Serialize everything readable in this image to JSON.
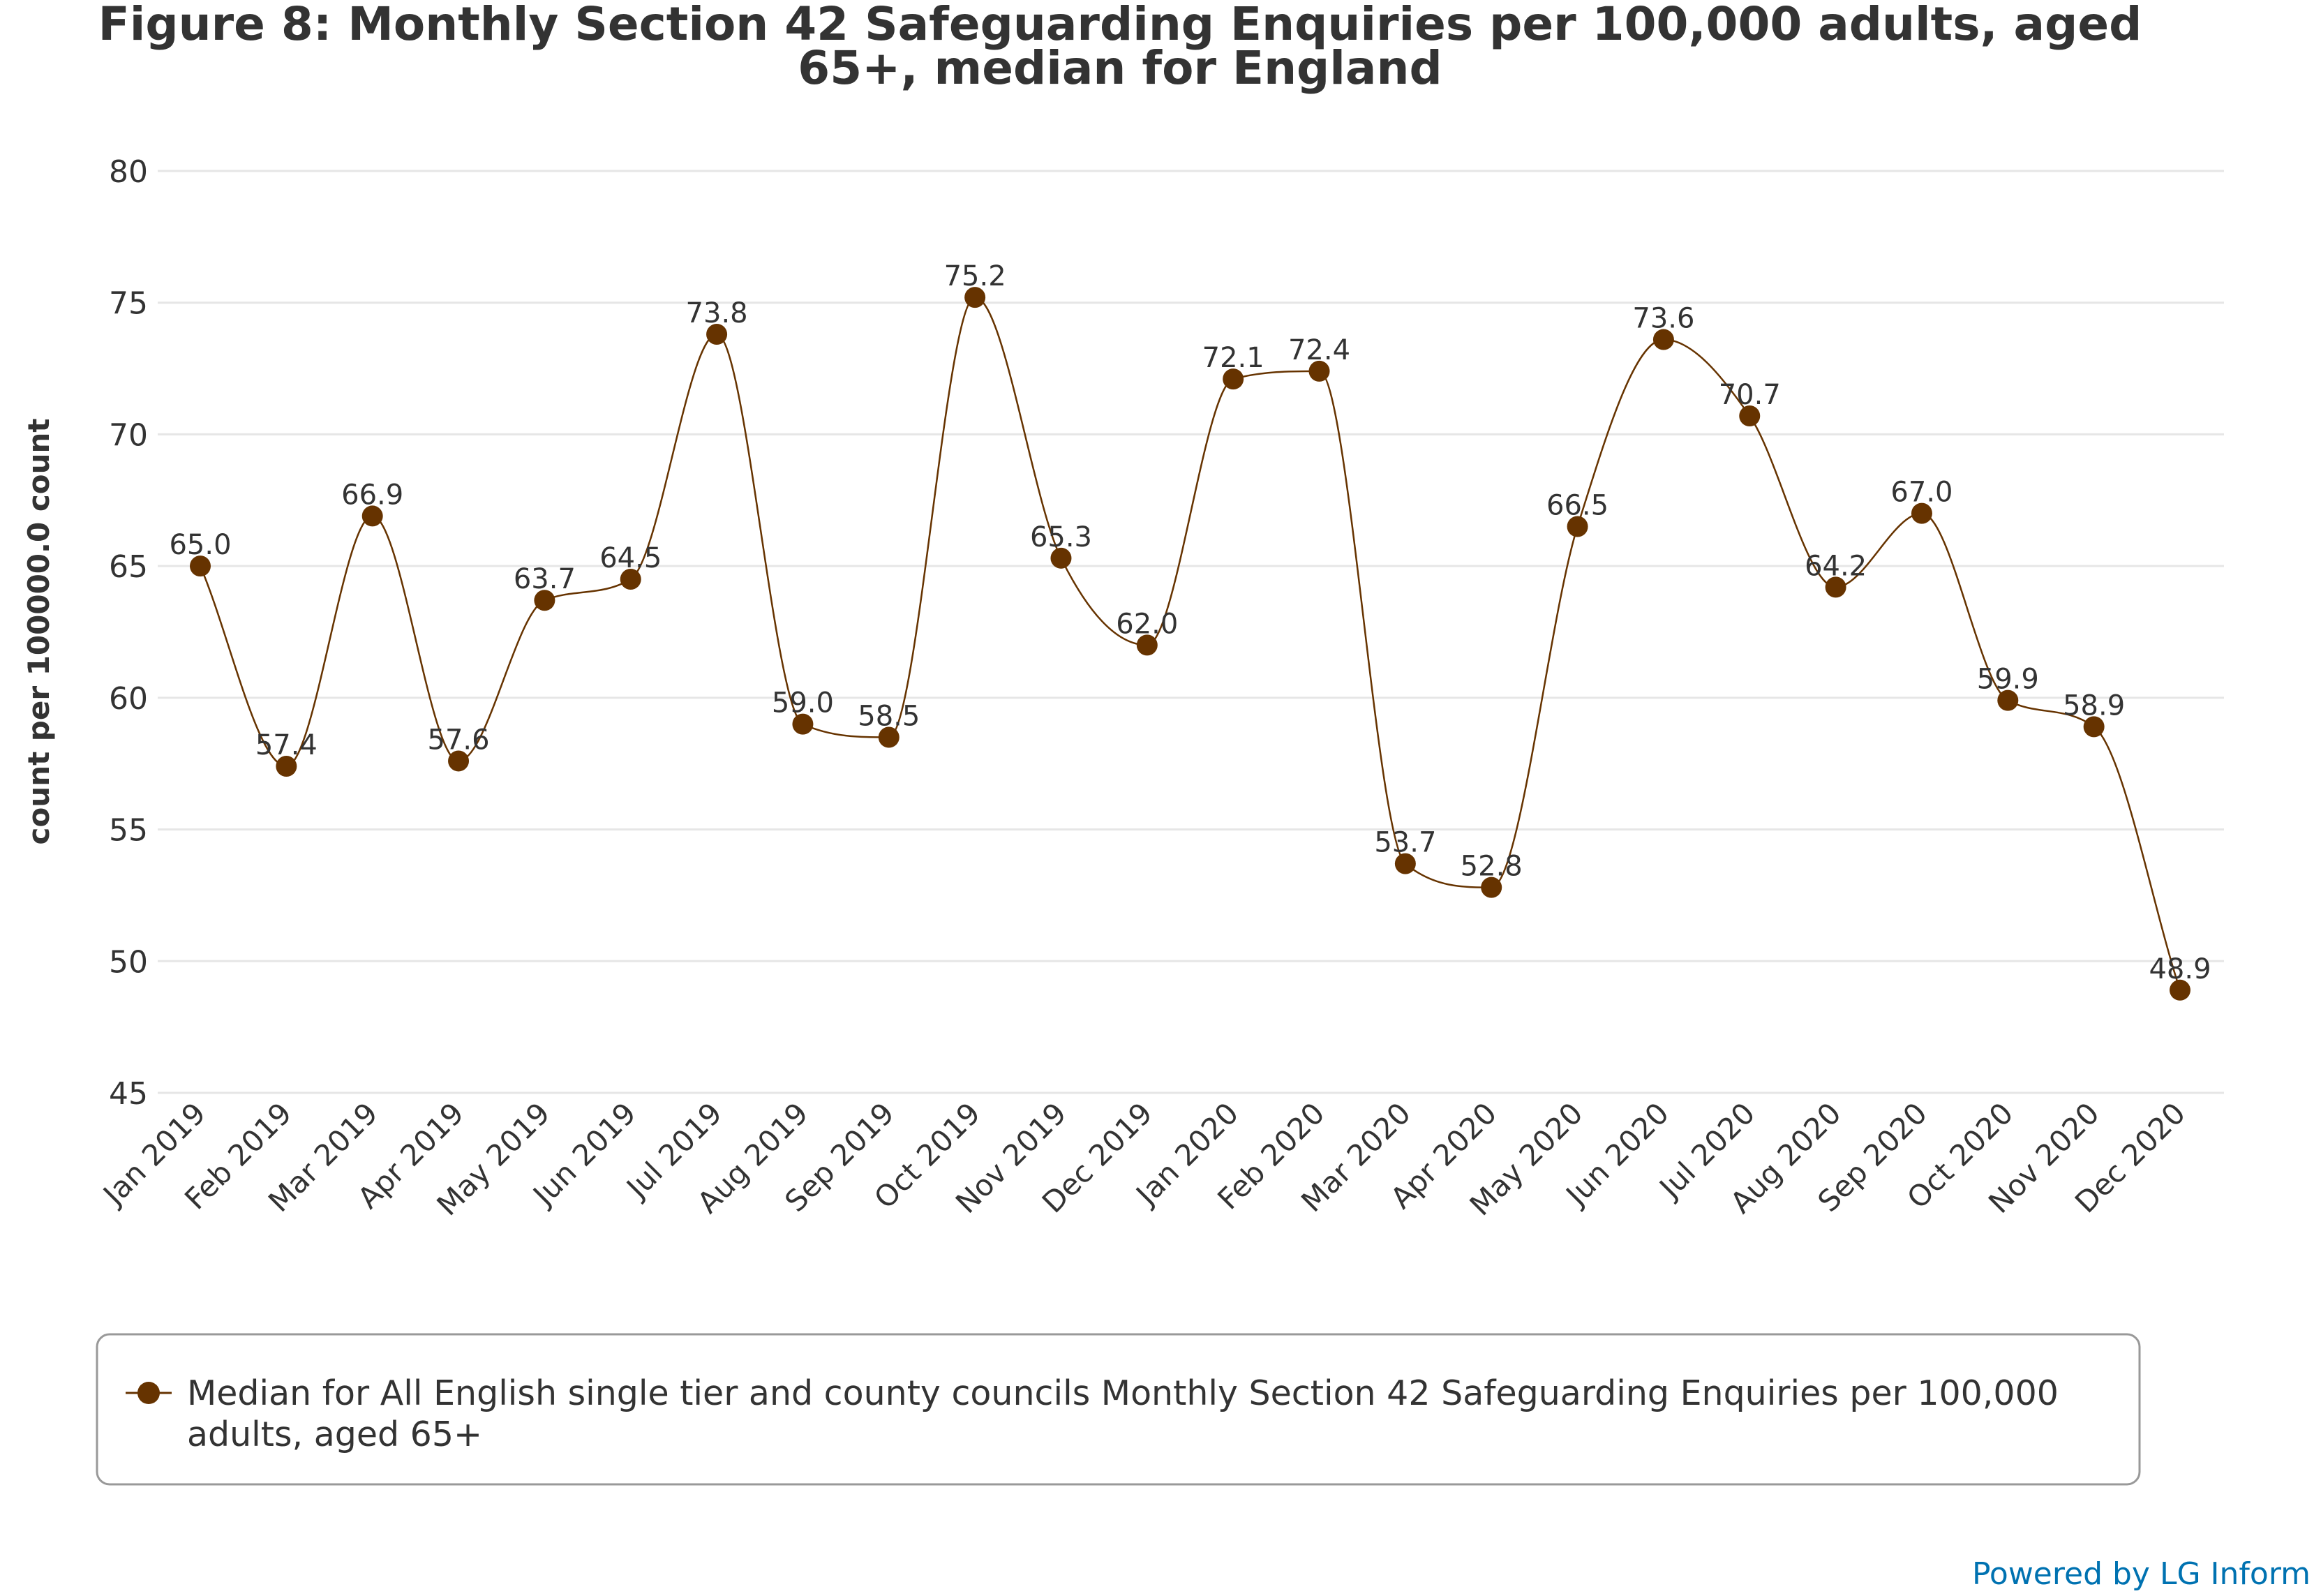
{
  "chart_data": {
    "type": "line",
    "title_lines": [
      "Figure 8: Monthly Section 42 Safeguarding Enquiries per 100,000 adults, aged",
      "65+, median for England"
    ],
    "ylabel": "count per 100000.0 count",
    "ylim": [
      45,
      80
    ],
    "yticks": [
      45,
      50,
      55,
      60,
      65,
      70,
      75,
      80
    ],
    "grid": true,
    "smooth": true,
    "categories": [
      "Jan 2019",
      "Feb 2019",
      "Mar 2019",
      "Apr 2019",
      "May 2019",
      "Jun 2019",
      "Jul 2019",
      "Aug 2019",
      "Sep 2019",
      "Oct 2019",
      "Nov 2019",
      "Dec 2019",
      "Jan 2020",
      "Feb 2020",
      "Mar 2020",
      "Apr 2020",
      "May 2020",
      "Jun 2020",
      "Jul 2020",
      "Aug 2020",
      "Sep 2020",
      "Oct 2020",
      "Nov 2020",
      "Dec 2020"
    ],
    "series": [
      {
        "name": "Median for All English single tier and county councils Monthly Section 42 Safeguarding Enquiries per 100,000 adults, aged 65+",
        "values": [
          65.0,
          57.4,
          66.9,
          57.6,
          63.7,
          64.5,
          73.8,
          59.0,
          58.5,
          75.2,
          65.3,
          62.0,
          72.1,
          72.4,
          53.7,
          52.8,
          66.5,
          73.6,
          70.7,
          64.2,
          67.0,
          59.9,
          58.9,
          48.9
        ],
        "data_labels": [
          "65.0",
          "57.4",
          "66.9",
          "57.6",
          "63.7",
          "64.5",
          "73.8",
          "59.0",
          "58.5",
          "75.2",
          "65.3",
          "62.0",
          "72.1",
          "72.4",
          "53.7",
          "52.8",
          "66.5",
          "73.6",
          "70.7",
          "64.2",
          "67.0",
          "59.9",
          "58.9",
          "48.9"
        ],
        "color": "#663300"
      }
    ],
    "legend": {
      "placement": "bottom",
      "lines": [
        "Median for All English single tier and county councils Monthly Section 42 Safeguarding Enquiries per 100,000",
        "adults, aged 65+"
      ]
    }
  },
  "colors": {
    "series": "#663300",
    "grid": "#e6e6e6",
    "text": "#333333",
    "credit": "#0072b1",
    "legend_border": "#999999"
  },
  "credit": "Powered by LG Inform"
}
